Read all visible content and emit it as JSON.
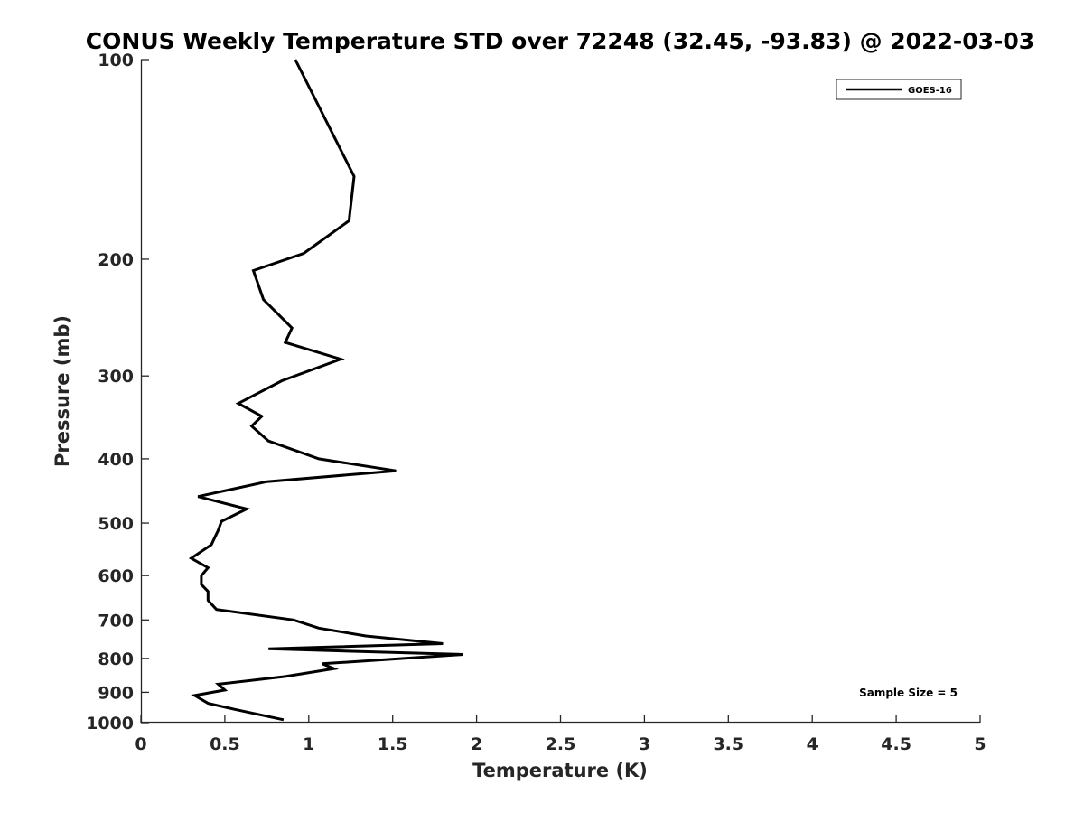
{
  "chart_data": {
    "type": "line",
    "title": "CONUS Weekly Temperature STD over 72248 (32.45, -93.83) @ 2022-03-03",
    "xlabel": "Temperature (K)",
    "ylabel": "Pressure (mb)",
    "xlim": [
      0,
      5
    ],
    "ylim": [
      1000,
      100
    ],
    "yscale": "log",
    "y_reversed": true,
    "grid": false,
    "legend_position": "top-right",
    "x_ticks": [
      "0",
      "0.5",
      "1",
      "1.5",
      "2",
      "2.5",
      "3",
      "3.5",
      "4",
      "4.5",
      "5"
    ],
    "y_ticks": [
      "100",
      "200",
      "300",
      "400",
      "500",
      "600",
      "700",
      "800",
      "900",
      "1000"
    ],
    "annotation": "Sample Size = 5",
    "series": [
      {
        "name": "GOES-16",
        "color": "#000000",
        "points": [
          [
            0.92,
            100
          ],
          [
            1.27,
            150
          ],
          [
            1.24,
            175
          ],
          [
            0.97,
            196
          ],
          [
            0.67,
            208
          ],
          [
            0.73,
            230
          ],
          [
            0.9,
            254
          ],
          [
            0.86,
            267
          ],
          [
            1.19,
            283
          ],
          [
            0.84,
            305
          ],
          [
            0.58,
            330
          ],
          [
            0.72,
            345
          ],
          [
            0.66,
            357
          ],
          [
            0.76,
            376
          ],
          [
            1.06,
            400
          ],
          [
            1.52,
            417
          ],
          [
            0.75,
            433
          ],
          [
            0.34,
            456
          ],
          [
            0.63,
            476
          ],
          [
            0.48,
            497
          ],
          [
            0.46,
            513
          ],
          [
            0.42,
            539
          ],
          [
            0.3,
            565
          ],
          [
            0.4,
            584
          ],
          [
            0.36,
            600
          ],
          [
            0.36,
            619
          ],
          [
            0.4,
            634
          ],
          [
            0.4,
            654
          ],
          [
            0.45,
            675
          ],
          [
            0.91,
            700
          ],
          [
            1.06,
            720
          ],
          [
            1.34,
            740
          ],
          [
            1.8,
            760
          ],
          [
            0.76,
            774
          ],
          [
            1.92,
            789
          ],
          [
            1.08,
            815
          ],
          [
            1.15,
            829
          ],
          [
            0.86,
            852
          ],
          [
            0.46,
            875
          ],
          [
            0.5,
            893
          ],
          [
            0.32,
            910
          ],
          [
            0.4,
            935
          ],
          [
            0.56,
            955
          ],
          [
            0.85,
            990
          ]
        ]
      }
    ]
  }
}
